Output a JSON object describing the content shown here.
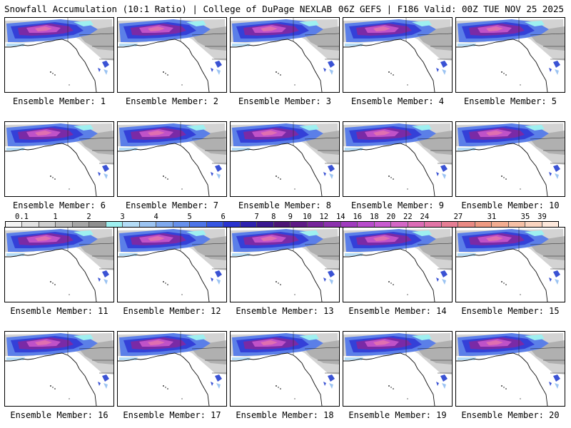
{
  "header": {
    "left": "Snowfall Accumulation (10:1 Ratio) | College of DuPage NEXLAB",
    "right": "06Z GEFS | F186 Valid: 00Z TUE NOV 25 2025"
  },
  "panel_label_prefix": "Ensemble Member: ",
  "members": [
    "1",
    "2",
    "3",
    "4",
    "5",
    "6",
    "7",
    "8",
    "9",
    "10",
    "11",
    "12",
    "13",
    "14",
    "15",
    "16",
    "17",
    "18",
    "19",
    "20"
  ],
  "scale": {
    "ticks": [
      "0.1",
      "1",
      "2",
      "3",
      "4",
      "5",
      "6",
      "7",
      "8",
      "9",
      "10",
      "12",
      "14",
      "16",
      "18",
      "20",
      "22",
      "24",
      "27",
      "31",
      "35",
      "39"
    ],
    "colors": [
      "#f4f4f4",
      "#e2e2e2",
      "#cfcfcf",
      "#bbbbbb",
      "#a6a6a6",
      "#8f8f8f",
      "#9ef0f0",
      "#b4dcf6",
      "#9cc4f2",
      "#7ea8ee",
      "#6690ec",
      "#4d74e8",
      "#3656e2",
      "#2a34d0",
      "#2e22b0",
      "#3a1890",
      "#4c1476",
      "#5e1a86",
      "#76249a",
      "#8c32ae",
      "#a03cbe",
      "#b84ccc",
      "#c85ad0",
      "#d466c6",
      "#dc6cb6",
      "#e274a6",
      "#e67e94",
      "#ea8a84",
      "#ee9a82",
      "#f2ac90",
      "#f6c0a6",
      "#fad4c0",
      "#fde8dc"
    ]
  }
}
